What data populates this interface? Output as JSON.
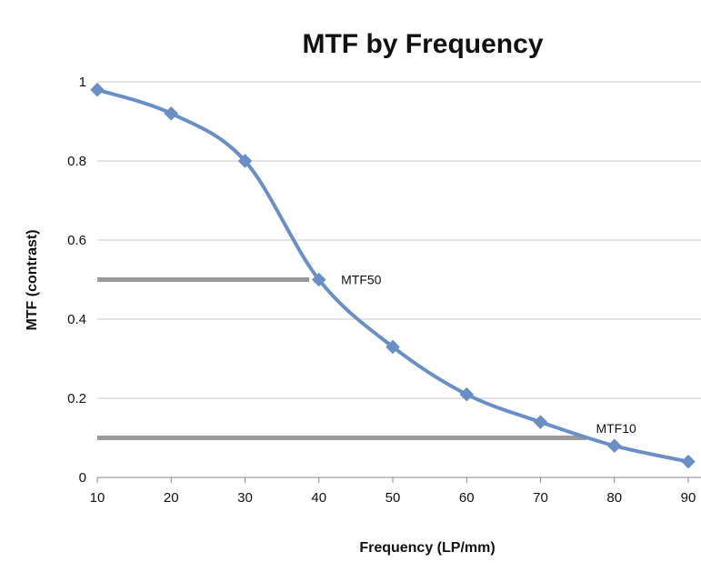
{
  "chart_data": {
    "type": "line",
    "title": "MTF by Frequency",
    "xlabel": "Frequency (LP/mm)",
    "ylabel": "MTF (contrast)",
    "xlim": [
      10,
      90
    ],
    "ylim": [
      0,
      1
    ],
    "x_ticks": [
      "10",
      "20",
      "30",
      "40",
      "50",
      "60",
      "70",
      "80",
      "90"
    ],
    "y_ticks": [
      "0",
      "0.2",
      "0.4",
      "0.6",
      "0.8",
      "1"
    ],
    "grid": true,
    "smooth": true,
    "series": [
      {
        "name": "MTF",
        "color": "#6a8fc7",
        "x": [
          10,
          20,
          30,
          40,
          50,
          60,
          70,
          80,
          90
        ],
        "y": [
          0.98,
          0.92,
          0.8,
          0.5,
          0.33,
          0.21,
          0.14,
          0.08,
          0.04
        ]
      }
    ],
    "reference_lines": [
      {
        "label": "MTF50",
        "y": 0.5,
        "x_start": 10,
        "x_end": 38.7,
        "color": "#999999"
      },
      {
        "label": "MTF10",
        "y": 0.1,
        "x_start": 10,
        "x_end": 76.2,
        "color": "#999999"
      }
    ]
  }
}
